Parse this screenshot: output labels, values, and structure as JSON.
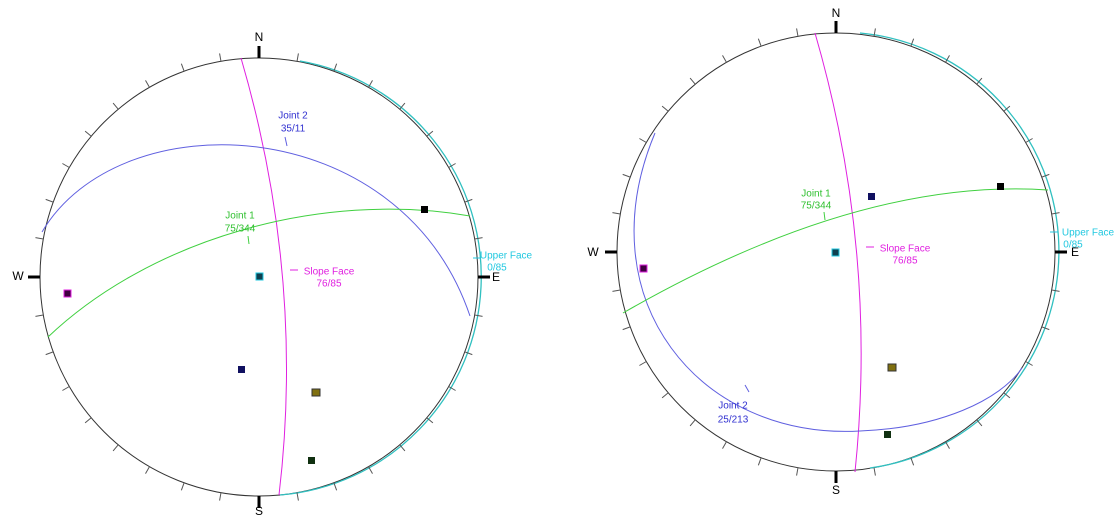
{
  "stereonets": [
    {
      "north": "N",
      "south": "S",
      "east": "E",
      "west": "W",
      "joint_2": {
        "name": "Joint 2",
        "orientation": "35/11"
      },
      "joint_1": {
        "name": "Joint 1",
        "orientation": "75/344"
      },
      "slope_face": {
        "name": "Slope Face",
        "orientation": "76/85"
      },
      "upper_face": {
        "name": "Upper Face",
        "orientation": "0/85"
      }
    },
    {
      "north": "N",
      "south": "S",
      "east": "E",
      "west": "W",
      "joint_1": {
        "name": "Joint 1",
        "orientation": "75/344"
      },
      "slope_face": {
        "name": "Slope Face",
        "orientation": "76/85"
      },
      "upper_face": {
        "name": "Upper Face",
        "orientation": "0/85"
      },
      "joint_2": {
        "name": "Joint 2",
        "orientation": "25/213"
      }
    }
  ]
}
